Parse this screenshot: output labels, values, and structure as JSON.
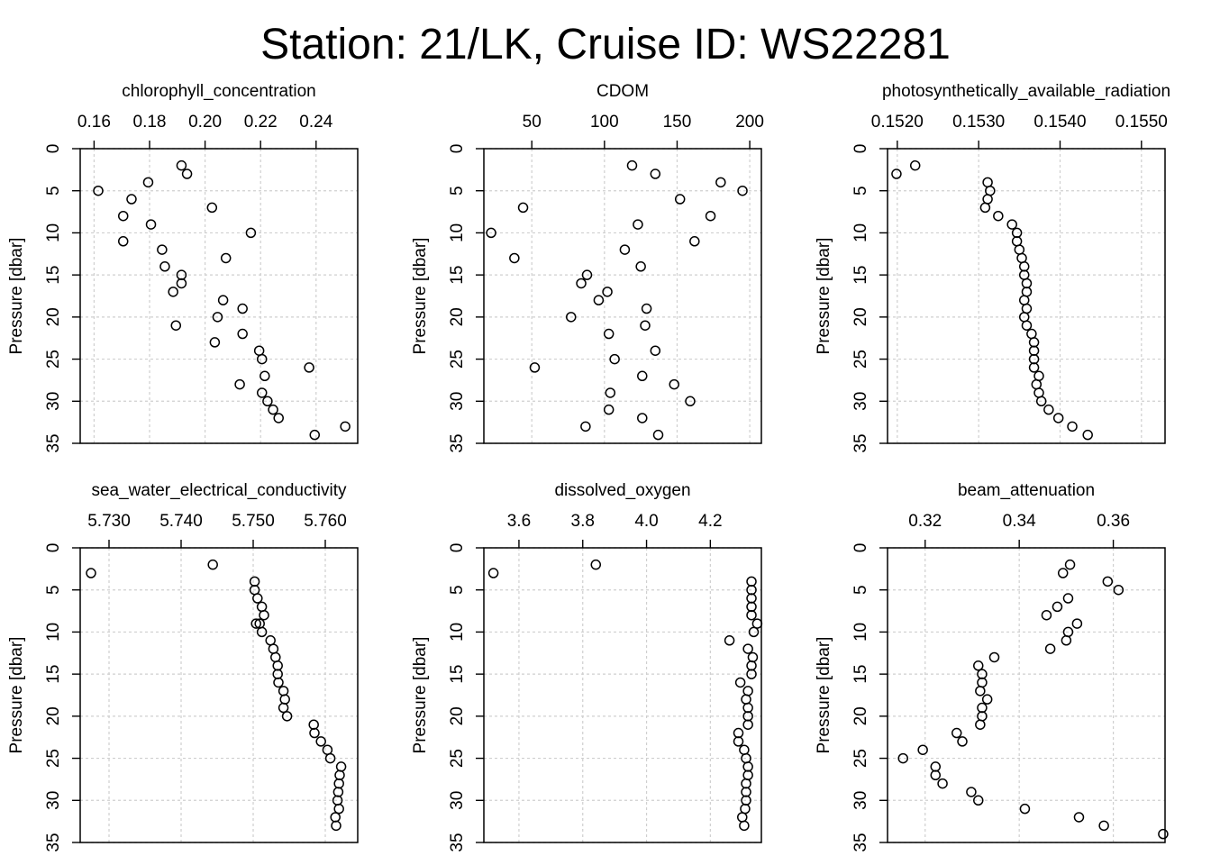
{
  "figure_title": "Station: 21/LK, Cruise ID: WS22281",
  "chart_data": [
    {
      "type": "scatter",
      "title": "chlorophyll_concentration",
      "ylabel": "Pressure [dbar]",
      "xlim": [
        0.155,
        0.255
      ],
      "ylim": [
        35,
        0
      ],
      "xticks": [
        0.16,
        0.18,
        0.2,
        0.22,
        0.24
      ],
      "xtick_labels": [
        "0.16",
        "0.18",
        "0.20",
        "0.22",
        "0.24"
      ],
      "yticks": [
        0,
        5,
        10,
        15,
        20,
        25,
        30,
        35
      ],
      "ytick_labels": [
        "0",
        "5",
        "10",
        "15",
        "20",
        "25",
        "30",
        "35"
      ],
      "grid": true,
      "x": [
        0.1915,
        0.1935,
        0.1795,
        0.1615,
        0.1735,
        0.2025,
        0.1705,
        0.1805,
        0.2165,
        0.1705,
        0.1845,
        0.2075,
        0.1855,
        0.1915,
        0.1915,
        0.1885,
        0.2065,
        0.2135,
        0.2045,
        0.1895,
        0.2135,
        0.2035,
        0.2195,
        0.2205,
        0.2375,
        0.2215,
        0.2125,
        0.2205,
        0.2225,
        0.2245,
        0.2265,
        0.2505,
        0.2395
      ],
      "y": [
        2,
        3,
        4,
        5,
        6,
        7,
        8,
        9,
        10,
        11,
        12,
        13,
        14,
        15,
        16,
        17,
        18,
        19,
        20,
        21,
        22,
        23,
        24,
        25,
        26,
        27,
        28,
        29,
        30,
        31,
        32,
        33,
        34
      ]
    },
    {
      "type": "scatter",
      "title": "CDOM",
      "ylabel": "Pressure [dbar]",
      "xlim": [
        17,
        208
      ],
      "ylim": [
        35,
        0
      ],
      "xticks": [
        50,
        100,
        150,
        200
      ],
      "xtick_labels": [
        "50",
        "100",
        "150",
        "200"
      ],
      "yticks": [
        0,
        5,
        10,
        15,
        20,
        25,
        30,
        35
      ],
      "ytick_labels": [
        "0",
        "5",
        "10",
        "15",
        "20",
        "25",
        "30",
        "35"
      ],
      "grid": true,
      "x": [
        119,
        135,
        180,
        195,
        152,
        44,
        173,
        123,
        22,
        162,
        114,
        38,
        125,
        88,
        84,
        102,
        96,
        129,
        77,
        128,
        103,
        135,
        107,
        52,
        126,
        148,
        104,
        159,
        103,
        126,
        87,
        137
      ],
      "y": [
        2,
        3,
        4,
        5,
        6,
        7,
        8,
        9,
        10,
        11,
        12,
        13,
        14,
        15,
        16,
        17,
        18,
        19,
        20,
        21,
        22,
        24,
        25,
        26,
        27,
        28,
        29,
        30,
        31,
        32,
        33,
        34
      ]
    },
    {
      "type": "scatter",
      "title": "photosynthetically_available_radiation",
      "ylabel": "Pressure [dbar]",
      "xlim": [
        0.15188,
        0.15529
      ],
      "ylim": [
        35,
        0
      ],
      "xticks": [
        0.152,
        0.153,
        0.154,
        0.155
      ],
      "xtick_labels": [
        "0.1520",
        "0.1530",
        "0.1540",
        "0.1550"
      ],
      "yticks": [
        0,
        5,
        10,
        15,
        20,
        25,
        30,
        35
      ],
      "ytick_labels": [
        "0",
        "5",
        "10",
        "15",
        "20",
        "25",
        "30",
        "35"
      ],
      "grid": true,
      "x": [
        0.15222,
        0.15199,
        0.15311,
        0.15314,
        0.15311,
        0.15308,
        0.15324,
        0.15341,
        0.15347,
        0.15347,
        0.1535,
        0.15353,
        0.15356,
        0.15356,
        0.15359,
        0.15359,
        0.15356,
        0.15359,
        0.15356,
        0.15359,
        0.15365,
        0.15368,
        0.15368,
        0.15368,
        0.15368,
        0.15374,
        0.15371,
        0.15374,
        0.15377,
        0.15386,
        0.15398,
        0.15415,
        0.15434
      ],
      "y": [
        2,
        3,
        4,
        5,
        6,
        7,
        8,
        9,
        10,
        11,
        12,
        13,
        14,
        15,
        16,
        17,
        18,
        19,
        20,
        21,
        22,
        23,
        24,
        25,
        26,
        27,
        28,
        29,
        30,
        31,
        32,
        33,
        34
      ]
    },
    {
      "type": "scatter",
      "title": "sea_water_electrical_conductivity",
      "ylabel": "Pressure [dbar]",
      "xlim": [
        5.726,
        5.7645
      ],
      "ylim": [
        35,
        0
      ],
      "xticks": [
        5.73,
        5.74,
        5.75,
        5.76
      ],
      "xtick_labels": [
        "5.730",
        "5.740",
        "5.750",
        "5.760"
      ],
      "yticks": [
        0,
        5,
        10,
        15,
        20,
        25,
        30,
        35
      ],
      "ytick_labels": [
        "0",
        "5",
        "10",
        "15",
        "20",
        "25",
        "30",
        "35"
      ],
      "grid": true,
      "x": [
        5.7444,
        5.7275,
        5.7502,
        5.7502,
        5.7506,
        5.7512,
        5.7515,
        5.7504,
        5.7509,
        5.7512,
        5.7524,
        5.7528,
        5.7531,
        5.7534,
        5.7534,
        5.7535,
        5.7542,
        5.7544,
        5.7542,
        5.7547,
        5.7584,
        5.7585,
        5.7594,
        5.7603,
        5.7607,
        5.7622,
        5.762,
        5.7619,
        5.7618,
        5.7617,
        5.7619,
        5.7614,
        5.7615
      ],
      "y": [
        2,
        3,
        4,
        5,
        6,
        7,
        8,
        9,
        9,
        10,
        11,
        12,
        13,
        14,
        15,
        16,
        17,
        18,
        19,
        20,
        21,
        22,
        23,
        24,
        25,
        26,
        27,
        28,
        29,
        30,
        31,
        32,
        33
      ]
    },
    {
      "type": "scatter",
      "title": "dissolved_oxygen",
      "ylabel": "Pressure [dbar]",
      "xlim": [
        3.49,
        4.36
      ],
      "ylim": [
        35,
        0
      ],
      "xticks": [
        3.6,
        3.8,
        4.0,
        4.2
      ],
      "xtick_labels": [
        "3.6",
        "3.8",
        "4.0",
        "4.2"
      ],
      "yticks": [
        0,
        5,
        10,
        15,
        20,
        25,
        30,
        35
      ],
      "ytick_labels": [
        "0",
        "5",
        "10",
        "15",
        "20",
        "25",
        "30",
        "35"
      ],
      "grid": true,
      "x": [
        3.841,
        3.52,
        4.329,
        4.329,
        4.329,
        4.329,
        4.329,
        4.347,
        4.336,
        4.26,
        4.318,
        4.333,
        4.329,
        4.329,
        4.294,
        4.318,
        4.312,
        4.318,
        4.318,
        4.318,
        4.288,
        4.288,
        4.306,
        4.312,
        4.318,
        4.318,
        4.312,
        4.312,
        4.312,
        4.309,
        4.3,
        4.306
      ],
      "y": [
        2,
        3,
        4,
        5,
        6,
        7,
        8,
        9,
        10,
        11,
        12,
        13,
        14,
        15,
        16,
        17,
        18,
        19,
        20,
        21,
        22,
        23,
        24,
        25,
        26,
        27,
        28,
        29,
        30,
        31,
        32,
        33
      ]
    },
    {
      "type": "scatter",
      "title": "beam_attenuation",
      "ylabel": "Pressure [dbar]",
      "xlim": [
        0.312,
        0.371
      ],
      "ylim": [
        35,
        0
      ],
      "xticks": [
        0.32,
        0.34,
        0.36
      ],
      "xtick_labels": [
        "0.32",
        "0.34",
        "0.36"
      ],
      "yticks": [
        0,
        5,
        10,
        15,
        20,
        25,
        30,
        35
      ],
      "ytick_labels": [
        "0",
        "5",
        "10",
        "15",
        "20",
        "25",
        "30",
        "35"
      ],
      "grid": true,
      "x": [
        0.3508,
        0.3493,
        0.3588,
        0.3611,
        0.3504,
        0.3481,
        0.3458,
        0.3523,
        0.3504,
        0.35,
        0.3466,
        0.3347,
        0.3313,
        0.3321,
        0.3321,
        0.3317,
        0.3332,
        0.3321,
        0.3321,
        0.3317,
        0.3267,
        0.3279,
        0.3195,
        0.3153,
        0.3222,
        0.3222,
        0.3237,
        0.3298,
        0.3313,
        0.3412,
        0.3527,
        0.358,
        0.3706
      ],
      "y": [
        2,
        3,
        4,
        5,
        6,
        7,
        8,
        9,
        10,
        11,
        12,
        13,
        14,
        15,
        16,
        17,
        18,
        19,
        20,
        21,
        22,
        23,
        24,
        25,
        26,
        27,
        28,
        29,
        30,
        31,
        32,
        33,
        34
      ]
    }
  ]
}
